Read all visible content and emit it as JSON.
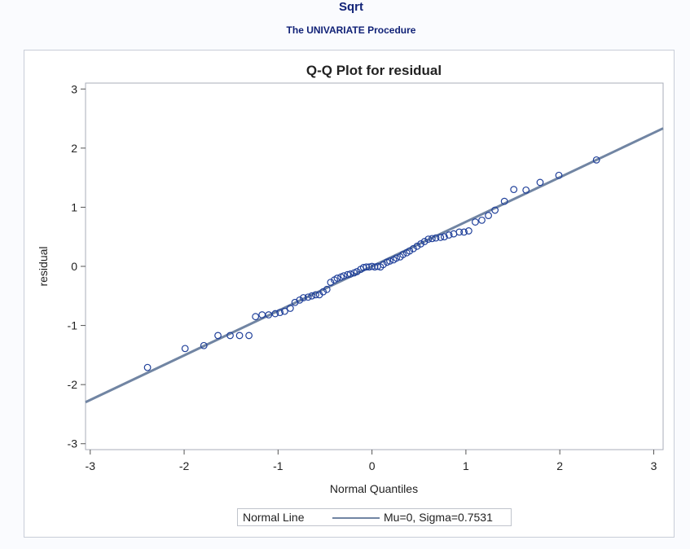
{
  "header": {
    "title": "Sqrt",
    "subtitle": "The UNIVARIATE Procedure"
  },
  "colors": {
    "title": "#112277",
    "marker": "#20409a",
    "line": "#7185a3",
    "frame": "#a9aeb8"
  },
  "chart_data": {
    "type": "scatter",
    "title": "Q-Q Plot for residual",
    "xlabel": "Normal Quantiles",
    "ylabel": "residual",
    "xlim": [
      -3.05,
      3.1
    ],
    "ylim": [
      -3.1,
      3.1
    ],
    "x_ticks": [
      -3,
      -2,
      -1,
      0,
      1,
      2,
      3
    ],
    "y_ticks": [
      -3,
      -2,
      -1,
      0,
      1,
      2,
      3
    ],
    "x_tick_labels": [
      "-3",
      "-2",
      "-1",
      "0",
      "1",
      "2",
      "3"
    ],
    "y_tick_labels": [
      "-3",
      "-2",
      "-1",
      "0",
      "1",
      "2",
      "3"
    ],
    "grid": false,
    "legend": {
      "placement": "bottom-center",
      "label": "Normal Line",
      "entry": "Mu=0, Sigma=0.7531"
    },
    "reference_line": {
      "mu": 0,
      "sigma": 0.7531
    },
    "series": [
      {
        "name": "residual",
        "points": [
          [
            -2.39,
            -1.71
          ],
          [
            -1.99,
            -1.39
          ],
          [
            -1.79,
            -1.34
          ],
          [
            -1.64,
            -1.17
          ],
          [
            -1.51,
            -1.17
          ],
          [
            -1.41,
            -1.17
          ],
          [
            -1.31,
            -1.17
          ],
          [
            -1.24,
            -0.85
          ],
          [
            -1.17,
            -0.82
          ],
          [
            -1.1,
            -0.82
          ],
          [
            -1.03,
            -0.8
          ],
          [
            -0.98,
            -0.78
          ],
          [
            -0.93,
            -0.76
          ],
          [
            -0.87,
            -0.71
          ],
          [
            -0.82,
            -0.61
          ],
          [
            -0.77,
            -0.57
          ],
          [
            -0.73,
            -0.53
          ],
          [
            -0.68,
            -0.52
          ],
          [
            -0.64,
            -0.5
          ],
          [
            -0.6,
            -0.48
          ],
          [
            -0.56,
            -0.48
          ],
          [
            -0.52,
            -0.43
          ],
          [
            -0.48,
            -0.39
          ],
          [
            -0.44,
            -0.27
          ],
          [
            -0.4,
            -0.23
          ],
          [
            -0.37,
            -0.2
          ],
          [
            -0.33,
            -0.18
          ],
          [
            -0.3,
            -0.16
          ],
          [
            -0.26,
            -0.14
          ],
          [
            -0.23,
            -0.13
          ],
          [
            -0.19,
            -0.11
          ],
          [
            -0.16,
            -0.09
          ],
          [
            -0.12,
            -0.05
          ],
          [
            -0.09,
            -0.02
          ],
          [
            -0.06,
            -0.01
          ],
          [
            -0.03,
            -0.01
          ],
          [
            0.0,
            0.0
          ],
          [
            0.03,
            -0.01
          ],
          [
            0.06,
            0.0
          ],
          [
            0.09,
            -0.01
          ],
          [
            0.12,
            0.03
          ],
          [
            0.16,
            0.07
          ],
          [
            0.19,
            0.09
          ],
          [
            0.23,
            0.11
          ],
          [
            0.26,
            0.14
          ],
          [
            0.3,
            0.16
          ],
          [
            0.33,
            0.2
          ],
          [
            0.37,
            0.23
          ],
          [
            0.4,
            0.26
          ],
          [
            0.44,
            0.3
          ],
          [
            0.48,
            0.34
          ],
          [
            0.52,
            0.38
          ],
          [
            0.56,
            0.42
          ],
          [
            0.6,
            0.46
          ],
          [
            0.64,
            0.47
          ],
          [
            0.68,
            0.48
          ],
          [
            0.73,
            0.49
          ],
          [
            0.77,
            0.5
          ],
          [
            0.82,
            0.53
          ],
          [
            0.87,
            0.55
          ],
          [
            0.93,
            0.58
          ],
          [
            0.98,
            0.58
          ],
          [
            1.03,
            0.6
          ],
          [
            1.1,
            0.75
          ],
          [
            1.17,
            0.78
          ],
          [
            1.24,
            0.86
          ],
          [
            1.31,
            0.95
          ],
          [
            1.41,
            1.1
          ],
          [
            1.51,
            1.3
          ],
          [
            1.64,
            1.29
          ],
          [
            1.79,
            1.42
          ],
          [
            1.99,
            1.54
          ],
          [
            2.39,
            1.8
          ]
        ]
      }
    ]
  }
}
